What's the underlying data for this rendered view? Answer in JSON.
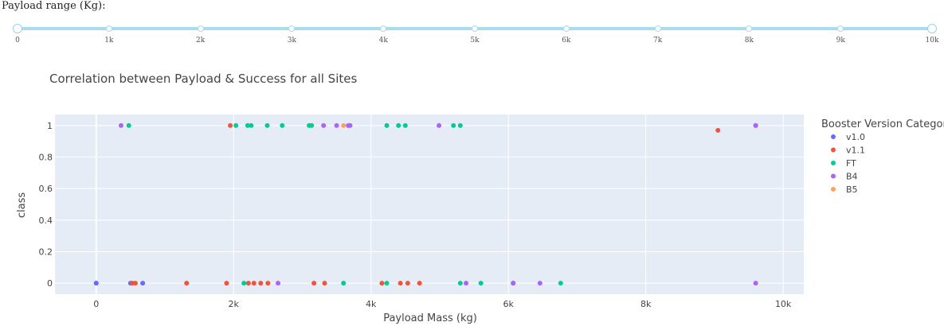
{
  "slider": {
    "label": "Payload range (Kg):",
    "min": 0,
    "max": 10000,
    "step": 1000,
    "value": [
      0,
      10000
    ],
    "marks": [
      "0",
      "1k",
      "2k",
      "3k",
      "4k",
      "5k",
      "6k",
      "7k",
      "8k",
      "9k",
      "10k"
    ]
  },
  "colors": {
    "v1.0": "#636efa",
    "v1.1": "#ef553b",
    "FT": "#00cc96",
    "B4": "#ab63fa",
    "B5": "#ffa15a",
    "plot_bg": "#e5ecf6",
    "grid": "#ffffff",
    "slider_track": "#a8dcf1"
  },
  "chart_data": {
    "type": "scatter",
    "title": "Correlation between Payload & Success for all Sites",
    "xlabel": "Payload Mass (kg)",
    "ylabel": "class",
    "xlim": [
      -600,
      10300
    ],
    "ylim": [
      -0.07,
      1.07
    ],
    "xticks": [
      0,
      2000,
      4000,
      6000,
      8000,
      10000
    ],
    "xtick_labels": [
      "0",
      "2k",
      "4k",
      "6k",
      "8k",
      "10k"
    ],
    "yticks": [
      0,
      0.2,
      0.4,
      0.6,
      0.8,
      1
    ],
    "ytick_labels": [
      "0",
      "0.2",
      "0.4",
      "0.6",
      "0.8",
      "1"
    ],
    "grid": true,
    "legend_title": "Booster Version Category",
    "legend_position": "right",
    "series": [
      {
        "name": "v1.0",
        "x": [
          0,
          0,
          500,
          677,
          9600
        ],
        "y": [
          0,
          0,
          0,
          0,
          1
        ]
      },
      {
        "name": "v1.1",
        "x": [
          1952,
          3170,
          3325,
          2296,
          1316,
          4535,
          4428,
          2216,
          2395,
          570,
          4159,
          1898,
          4707,
          2500,
          525,
          9050
        ],
        "y": [
          1,
          0,
          0,
          0,
          0,
          0,
          0,
          0,
          0,
          0,
          0,
          0,
          0,
          0,
          0,
          0.97
        ]
      },
      {
        "name": "FT",
        "x": [
          475,
          2034,
          2205,
          2257,
          2490,
          2708,
          3100,
          3136,
          4230,
          4400,
          4500,
          5200,
          5300,
          2150,
          3600,
          4230,
          5300,
          5600,
          6070,
          6761
        ],
        "y": [
          1,
          1,
          1,
          1,
          1,
          1,
          1,
          1,
          1,
          1,
          1,
          1,
          1,
          0,
          0,
          0,
          0,
          0,
          0,
          0
        ]
      },
      {
        "name": "B4",
        "x": [
          362,
          3310,
          3500,
          3669,
          3696,
          4990,
          9600,
          2647,
          5384,
          6070,
          6460,
          9600
        ],
        "y": [
          1,
          1,
          1,
          1,
          1,
          1,
          1,
          0,
          0,
          0,
          0,
          0
        ]
      },
      {
        "name": "B5",
        "x": [
          3600
        ],
        "y": [
          1
        ]
      }
    ]
  }
}
